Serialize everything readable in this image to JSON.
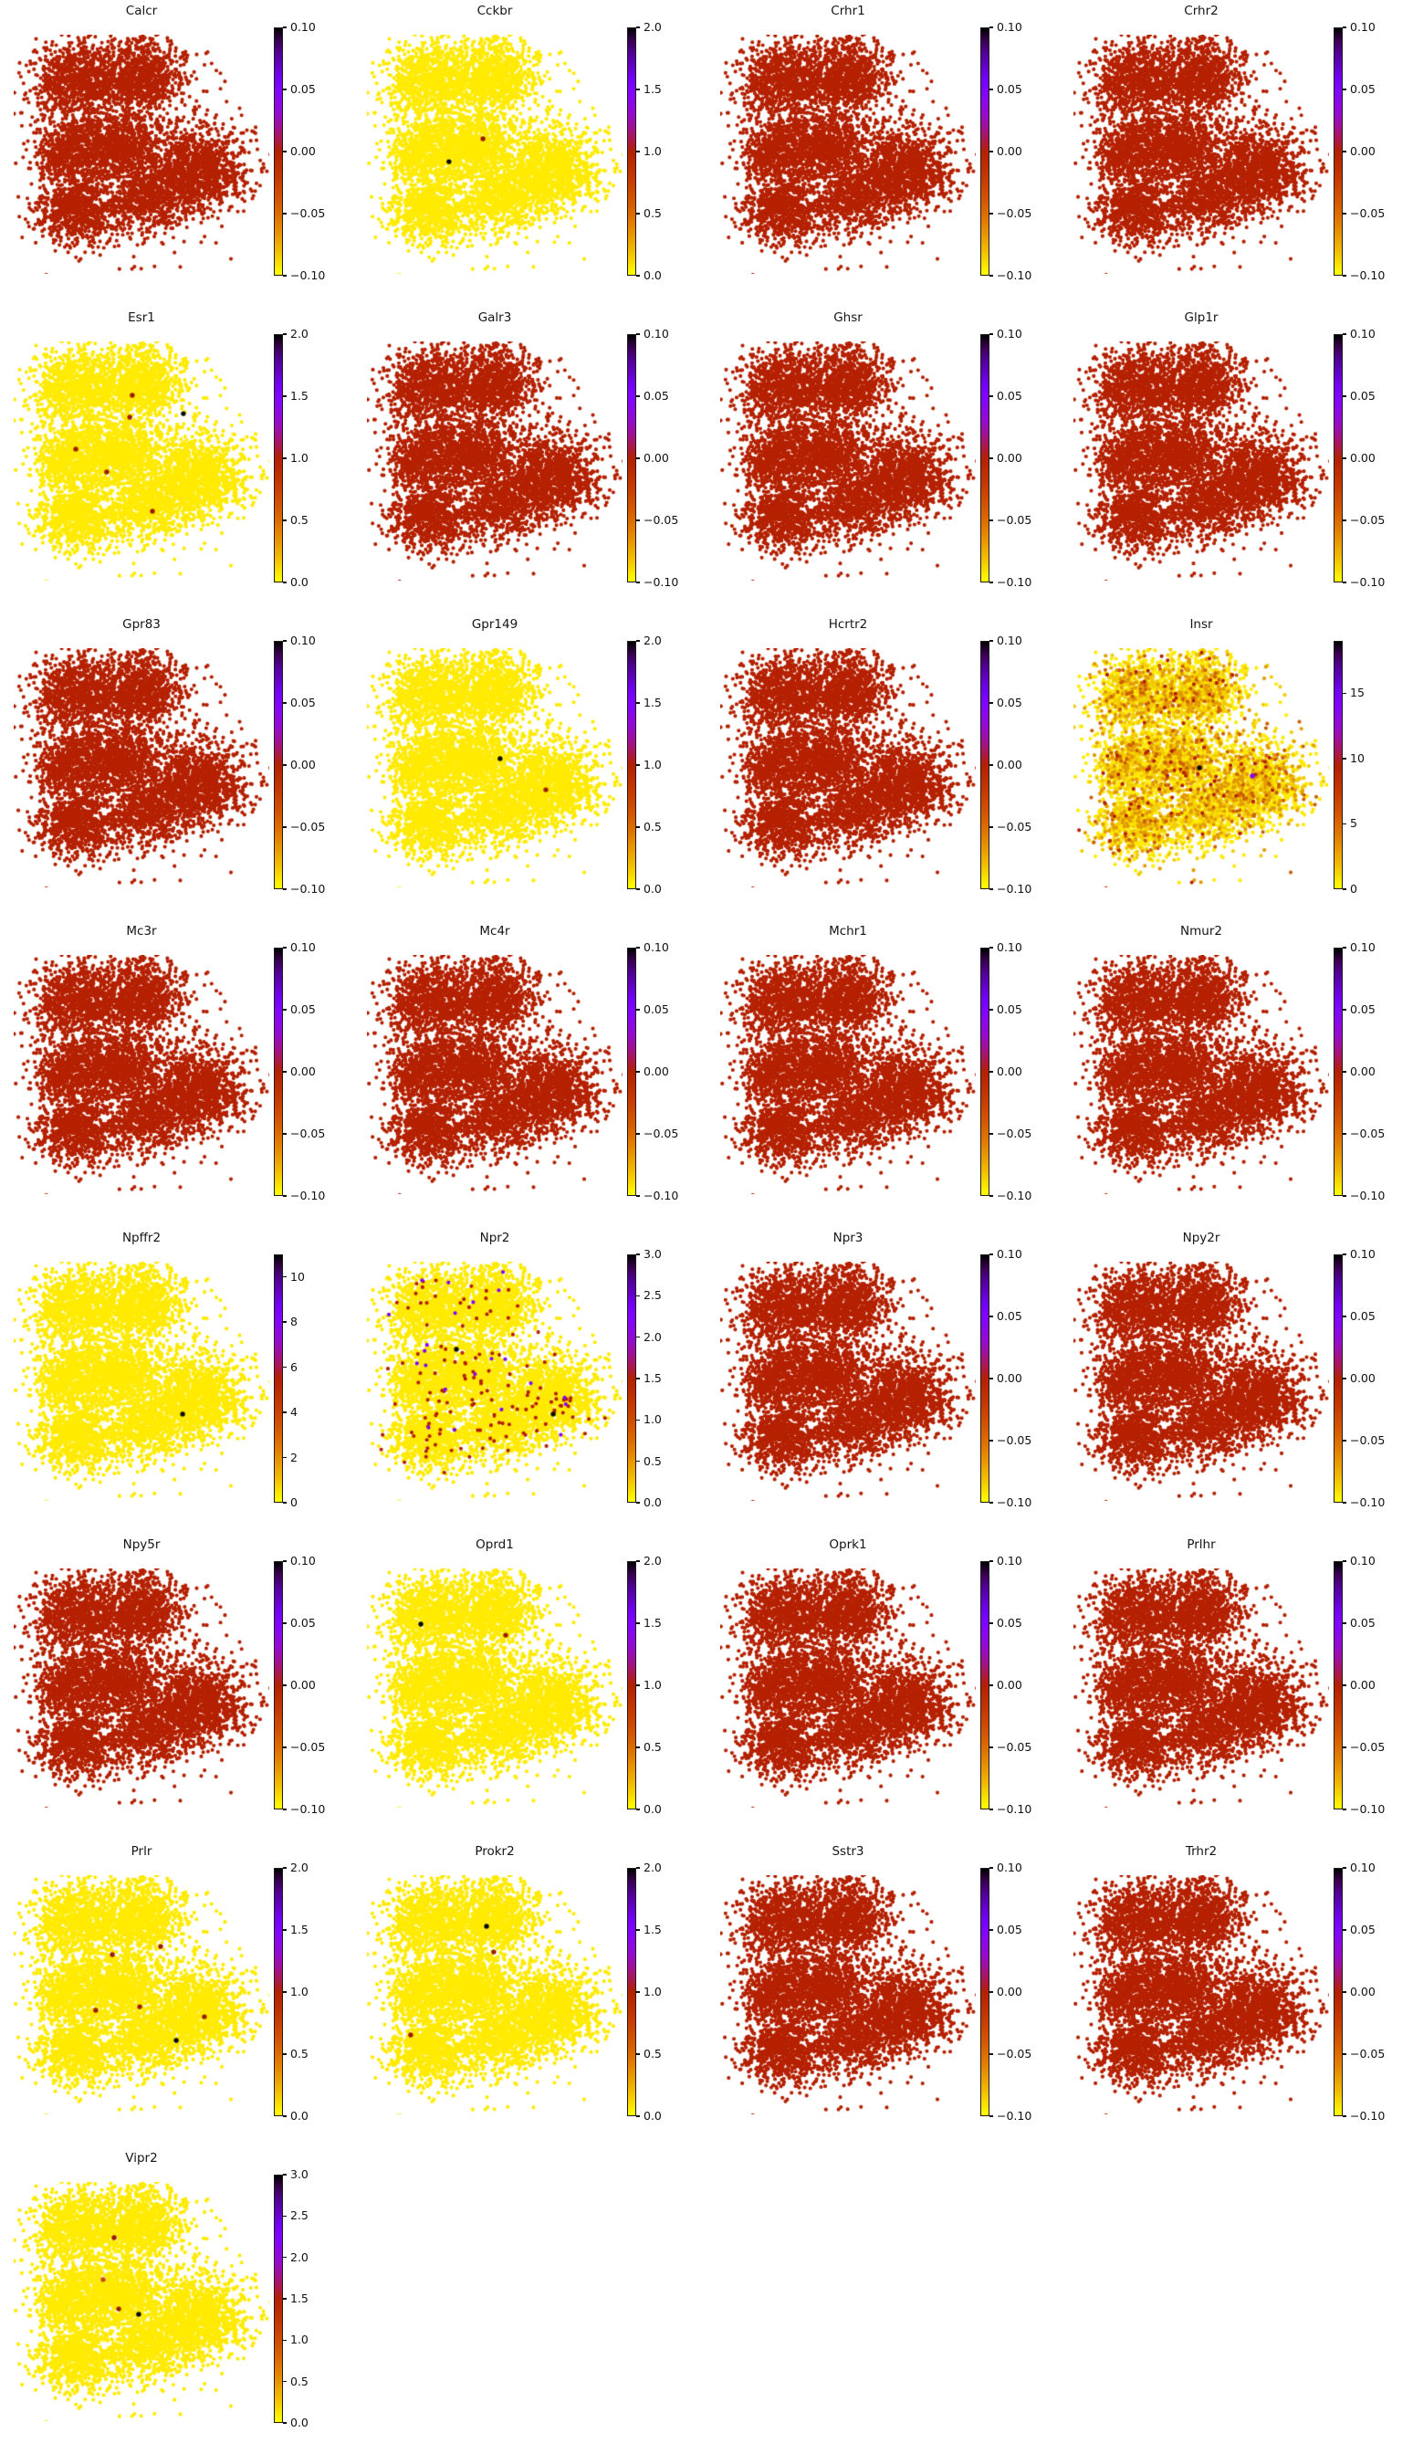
{
  "figure": {
    "background": "#ffffff",
    "kind": "multi-panel gene expression embedding scatter figure",
    "n_panels": 29,
    "columns": 4
  },
  "chart_data": {
    "type": "scatter",
    "title": "",
    "description": "Grid of 2D embedding scatter plots (same cell embedding in every panel), each colored by a gene score with an individual vertical colorbar using a yellow-red-violet-black (gnuplot reversed) colormap. Yellow = low value, brick red = middle (0.00 on correlation panels), black = high.",
    "colormap": {
      "name": "gnuplot_r (yellow low -> black high)",
      "css_stops": [
        "#000000 0%",
        "#390050 5%",
        "#510096 10%",
        "#7202f2 20%",
        "#8004ff 25%",
        "#970bce 35%",
        "#a11096 40%",
        "#ab174f 45%",
        "#b42000 50%",
        "#c63700 60%",
        "#d55700 70%",
        "#dd6b00 75%",
        "#e48300 80%",
        "#f2ba00 90%",
        "#ffff00 100%"
      ]
    },
    "point_colors": {
      "corr_zero_red": "#b42000",
      "expr_zero_yellow": "#ffea00",
      "dark_red_high": "#9b1c00",
      "violet_high": "#8004ff",
      "black_high": "#0a0a0a"
    },
    "embedding": {
      "seed": 1337,
      "comment": "cluster centers/sigmas in unit coordinates of the plot box; identical point cloud reused in all panels",
      "clusters": [
        {
          "x": 0.245,
          "y": 0.185,
          "sx": 0.085,
          "sy": 0.075,
          "n": 900
        },
        {
          "x": 0.5,
          "y": 0.17,
          "sx": 0.085,
          "sy": 0.075,
          "n": 950
        },
        {
          "x": 0.215,
          "y": 0.49,
          "sx": 0.065,
          "sy": 0.06,
          "n": 550
        },
        {
          "x": 0.41,
          "y": 0.47,
          "sx": 0.075,
          "sy": 0.07,
          "n": 780
        },
        {
          "x": 0.25,
          "y": 0.73,
          "sx": 0.08,
          "sy": 0.075,
          "n": 820
        },
        {
          "x": 0.52,
          "y": 0.69,
          "sx": 0.07,
          "sy": 0.065,
          "n": 560
        },
        {
          "x": 0.71,
          "y": 0.57,
          "sx": 0.095,
          "sy": 0.085,
          "n": 1300
        }
      ],
      "noise": {
        "x": 0.4,
        "y": 0.47,
        "sx": 0.21,
        "sy": 0.2,
        "n": 480
      },
      "outliers": [
        [
          0.946,
          0.412
        ],
        [
          0.971,
          0.573
        ]
      ]
    },
    "scales": {
      "corr": {
        "vmin": -0.1,
        "vmax": 0.1,
        "ticks": [
          "0.10",
          "0.05",
          "0.00",
          "−0.05",
          "−0.10"
        ],
        "fracs": [
          0,
          0.25,
          0.5,
          0.75,
          1
        ]
      },
      "expr2": {
        "vmin": 0,
        "vmax": 2.0,
        "ticks": [
          "2.0",
          "1.5",
          "1.0",
          "0.5",
          "0.0"
        ],
        "fracs": [
          0,
          0.25,
          0.5,
          0.75,
          1
        ]
      },
      "expr3": {
        "vmin": 0,
        "vmax": 3.0,
        "ticks": [
          "3.0",
          "2.5",
          "2.0",
          "1.5",
          "1.0",
          "0.5",
          "0.0"
        ],
        "fracs": [
          0,
          0.1667,
          0.3333,
          0.5,
          0.6667,
          0.8333,
          1
        ]
      },
      "insr": {
        "vmin": 0,
        "vmax": 19,
        "ticks": [
          "15",
          "10",
          "5",
          "0"
        ],
        "fracs": [
          0.211,
          0.474,
          0.737,
          1
        ]
      },
      "npffr2": {
        "vmin": 0,
        "vmax": 11,
        "ticks": [
          "10",
          "8",
          "6",
          "4",
          "2",
          "0"
        ],
        "fracs": [
          0.0909,
          0.2727,
          0.4545,
          0.6364,
          0.8182,
          1
        ]
      }
    },
    "panels": [
      {
        "title": "Calcr",
        "scale": "corr",
        "point_color": "#b42000",
        "specials": []
      },
      {
        "title": "Cckbr",
        "scale": "expr2",
        "point_color": "#ffea00",
        "specials": [
          [
            0.454,
            0.435,
            "#9b1c00"
          ],
          [
            0.321,
            0.531,
            "#0a0a0a"
          ]
        ]
      },
      {
        "title": "Crhr1",
        "scale": "corr",
        "point_color": "#b42000",
        "specials": []
      },
      {
        "title": "Crhr2",
        "scale": "corr",
        "point_color": "#b42000",
        "specials": []
      },
      {
        "title": "Esr1",
        "scale": "expr2",
        "point_color": "#ffea00",
        "specials": [
          [
            0.464,
            0.225,
            "#9b1c00"
          ],
          [
            0.454,
            0.317,
            "#9b1c00"
          ],
          [
            0.664,
            0.302,
            "#0a0a0a"
          ],
          [
            0.243,
            0.45,
            "#9b1c00"
          ],
          [
            0.364,
            0.546,
            "#9b1c00"
          ],
          [
            0.543,
            0.71,
            "#9b1c00"
          ]
        ]
      },
      {
        "title": "Galr3",
        "scale": "corr",
        "point_color": "#b42000",
        "specials": []
      },
      {
        "title": "Ghsr",
        "scale": "corr",
        "point_color": "#b42000",
        "specials": []
      },
      {
        "title": "Glp1r",
        "scale": "corr",
        "point_color": "#b42000",
        "specials": []
      },
      {
        "title": "Gpr83",
        "scale": "corr",
        "point_color": "#b42000",
        "specials": []
      },
      {
        "title": "Gpr149",
        "scale": "expr2",
        "point_color": "#ffea00",
        "specials": [
          [
            0.521,
            0.462,
            "#0a0a0a"
          ],
          [
            0.7,
            0.592,
            "#9b1c00"
          ]
        ]
      },
      {
        "title": "Hcrtr2",
        "scale": "corr",
        "point_color": "#b42000",
        "specials": []
      },
      {
        "title": "Insr",
        "scale": "insr",
        "point_color": "#ffea00",
        "mix": [
          [
            "#f2cc00",
            0.24
          ],
          [
            "#e39a00",
            0.13
          ],
          [
            "#cc5f00",
            0.035
          ],
          [
            "#b42000",
            0.012
          ]
        ],
        "specials": [
          [
            0.493,
            0.5,
            "#0a0a0a"
          ],
          [
            0.7,
            0.534,
            "#8004ff"
          ]
        ]
      },
      {
        "title": "Mc3r",
        "scale": "corr",
        "point_color": "#b42000",
        "specials": []
      },
      {
        "title": "Mc4r",
        "scale": "corr",
        "point_color": "#b42000",
        "specials": []
      },
      {
        "title": "Mchr1",
        "scale": "corr",
        "point_color": "#b42000",
        "specials": []
      },
      {
        "title": "Nmur2",
        "scale": "corr",
        "point_color": "#b42000",
        "specials": []
      },
      {
        "title": "Npffr2",
        "scale": "npffr2",
        "point_color": "#ffea00",
        "specials": [
          [
            0.661,
            0.637,
            "#0a0a0a"
          ]
        ]
      },
      {
        "title": "Npr2",
        "scale": "expr3",
        "point_color": "#ffea00",
        "mix": [
          [
            "#b42000",
            0.018
          ],
          [
            "#8004ff",
            0.0025
          ]
        ],
        "specials": [
          [
            0.35,
            0.366,
            "#0a0a0a"
          ],
          [
            0.729,
            0.637,
            "#0a0a0a"
          ]
        ]
      },
      {
        "title": "Npr3",
        "scale": "corr",
        "point_color": "#b42000",
        "specials": []
      },
      {
        "title": "Npy2r",
        "scale": "corr",
        "point_color": "#b42000",
        "specials": []
      },
      {
        "title": "Npy5r",
        "scale": "corr",
        "point_color": "#b42000",
        "specials": []
      },
      {
        "title": "Oprd1",
        "scale": "expr2",
        "point_color": "#ffea00",
        "specials": [
          [
            0.211,
            0.233,
            "#0a0a0a"
          ],
          [
            0.543,
            0.279,
            "#9b1c00"
          ]
        ]
      },
      {
        "title": "Oprk1",
        "scale": "corr",
        "point_color": "#b42000",
        "specials": []
      },
      {
        "title": "Prlhr",
        "scale": "corr",
        "point_color": "#b42000",
        "specials": []
      },
      {
        "title": "Prlr",
        "scale": "expr2",
        "point_color": "#ffea00",
        "specials": [
          [
            0.575,
            0.298,
            "#9b1c00"
          ],
          [
            0.386,
            0.332,
            "#9b1c00"
          ],
          [
            0.321,
            0.565,
            "#9b1c00"
          ],
          [
            0.493,
            0.55,
            "#9b1c00"
          ],
          [
            0.746,
            0.592,
            "#9b1c00"
          ],
          [
            0.636,
            0.691,
            "#0a0a0a"
          ]
        ]
      },
      {
        "title": "Prokr2",
        "scale": "expr2",
        "point_color": "#ffea00",
        "specials": [
          [
            0.468,
            0.214,
            "#0a0a0a"
          ],
          [
            0.496,
            0.321,
            "#9b1c00"
          ],
          [
            0.171,
            0.668,
            "#9b1c00"
          ]
        ]
      },
      {
        "title": "Sstr3",
        "scale": "corr",
        "point_color": "#b42000",
        "specials": []
      },
      {
        "title": "Trhr2",
        "scale": "corr",
        "point_color": "#b42000",
        "specials": []
      },
      {
        "title": "Vipr2",
        "scale": "expr3",
        "point_color": "#ffea00",
        "specials": [
          [
            0.393,
            0.233,
            "#9b1c00"
          ],
          [
            0.35,
            0.408,
            "#c84a00"
          ],
          [
            0.411,
            0.531,
            "#9b1c00"
          ],
          [
            0.489,
            0.553,
            "#0a0a0a"
          ]
        ]
      }
    ]
  }
}
